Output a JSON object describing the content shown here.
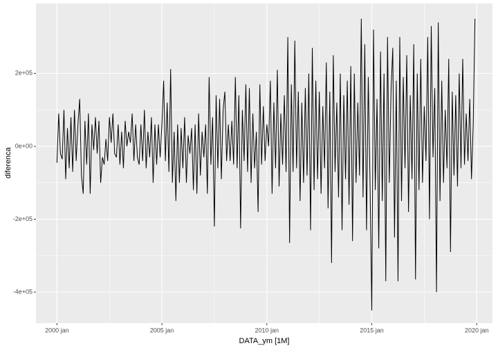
{
  "chart_data": {
    "type": "line",
    "x_label": "DATA_ym [1M]",
    "y_label": "diferenca",
    "xlim": [
      "1999-01",
      "2020-10"
    ],
    "xticks": [
      {
        "value": "2000-01",
        "label": "2000 jan"
      },
      {
        "value": "2005-01",
        "label": "2005 jan"
      },
      {
        "value": "2010-01",
        "label": "2010 jan"
      },
      {
        "value": "2015-01",
        "label": "2015 jan"
      },
      {
        "value": "2020-01",
        "label": "2020 jan"
      }
    ],
    "ylim": [
      -485000,
      392000
    ],
    "yticks": [
      {
        "value": -400000,
        "label": "-4e+05"
      },
      {
        "value": -200000,
        "label": "-2e+05"
      },
      {
        "value": 0,
        "label": "0e+00"
      },
      {
        "value": 200000,
        "label": "2e+05"
      }
    ],
    "grid": true,
    "color": "#000000",
    "x": [
      "2000-01",
      "2000-02",
      "2000-03",
      "2000-04",
      "2000-05",
      "2000-06",
      "2000-07",
      "2000-08",
      "2000-09",
      "2000-10",
      "2000-11",
      "2000-12",
      "2001-01",
      "2001-02",
      "2001-03",
      "2001-04",
      "2001-05",
      "2001-06",
      "2001-07",
      "2001-08",
      "2001-09",
      "2001-10",
      "2001-11",
      "2001-12",
      "2002-01",
      "2002-02",
      "2002-03",
      "2002-04",
      "2002-05",
      "2002-06",
      "2002-07",
      "2002-08",
      "2002-09",
      "2002-10",
      "2002-11",
      "2002-12",
      "2003-01",
      "2003-02",
      "2003-03",
      "2003-04",
      "2003-05",
      "2003-06",
      "2003-07",
      "2003-08",
      "2003-09",
      "2003-10",
      "2003-11",
      "2003-12",
      "2004-01",
      "2004-02",
      "2004-03",
      "2004-04",
      "2004-05",
      "2004-06",
      "2004-07",
      "2004-08",
      "2004-09",
      "2004-10",
      "2004-11",
      "2004-12",
      "2005-01",
      "2005-02",
      "2005-03",
      "2005-04",
      "2005-05",
      "2005-06",
      "2005-07",
      "2005-08",
      "2005-09",
      "2005-10",
      "2005-11",
      "2005-12",
      "2006-01",
      "2006-02",
      "2006-03",
      "2006-04",
      "2006-05",
      "2006-06",
      "2006-07",
      "2006-08",
      "2006-09",
      "2006-10",
      "2006-11",
      "2006-12",
      "2007-01",
      "2007-02",
      "2007-03",
      "2007-04",
      "2007-05",
      "2007-06",
      "2007-07",
      "2007-08",
      "2007-09",
      "2007-10",
      "2007-11",
      "2007-12",
      "2008-01",
      "2008-02",
      "2008-03",
      "2008-04",
      "2008-05",
      "2008-06",
      "2008-07",
      "2008-08",
      "2008-09",
      "2008-10",
      "2008-11",
      "2008-12",
      "2009-01",
      "2009-02",
      "2009-03",
      "2009-04",
      "2009-05",
      "2009-06",
      "2009-07",
      "2009-08",
      "2009-09",
      "2009-10",
      "2009-11",
      "2009-12",
      "2010-01",
      "2010-02",
      "2010-03",
      "2010-04",
      "2010-05",
      "2010-06",
      "2010-07",
      "2010-08",
      "2010-09",
      "2010-10",
      "2010-11",
      "2010-12",
      "2011-01",
      "2011-02",
      "2011-03",
      "2011-04",
      "2011-05",
      "2011-06",
      "2011-07",
      "2011-08",
      "2011-09",
      "2011-10",
      "2011-11",
      "2011-12",
      "2012-01",
      "2012-02",
      "2012-03",
      "2012-04",
      "2012-05",
      "2012-06",
      "2012-07",
      "2012-08",
      "2012-09",
      "2012-10",
      "2012-11",
      "2012-12",
      "2013-01",
      "2013-02",
      "2013-03",
      "2013-04",
      "2013-05",
      "2013-06",
      "2013-07",
      "2013-08",
      "2013-09",
      "2013-10",
      "2013-11",
      "2013-12",
      "2014-01",
      "2014-02",
      "2014-03",
      "2014-04",
      "2014-05",
      "2014-06",
      "2014-07",
      "2014-08",
      "2014-09",
      "2014-10",
      "2014-11",
      "2014-12",
      "2015-01",
      "2015-02",
      "2015-03",
      "2015-04",
      "2015-05",
      "2015-06",
      "2015-07",
      "2015-08",
      "2015-09",
      "2015-10",
      "2015-11",
      "2015-12",
      "2016-01",
      "2016-02",
      "2016-03",
      "2016-04",
      "2016-05",
      "2016-06",
      "2016-07",
      "2016-08",
      "2016-09",
      "2016-10",
      "2016-11",
      "2016-12",
      "2017-01",
      "2017-02",
      "2017-03",
      "2017-04",
      "2017-05",
      "2017-06",
      "2017-07",
      "2017-08",
      "2017-09",
      "2017-10",
      "2017-11",
      "2017-12",
      "2018-01",
      "2018-02",
      "2018-03",
      "2018-04",
      "2018-05",
      "2018-06",
      "2018-07",
      "2018-08",
      "2018-09",
      "2018-10",
      "2018-11",
      "2018-12",
      "2019-01",
      "2019-02",
      "2019-03",
      "2019-04",
      "2019-05",
      "2019-06",
      "2019-07",
      "2019-08",
      "2019-09",
      "2019-10",
      "2019-11",
      "2019-12"
    ],
    "values": [
      -45000,
      90000,
      -20000,
      -35000,
      100000,
      -90000,
      50000,
      -60000,
      80000,
      -70000,
      100000,
      -40000,
      60000,
      130000,
      -80000,
      -130000,
      70000,
      -50000,
      90000,
      -130000,
      60000,
      -10000,
      80000,
      -20000,
      70000,
      -100000,
      -30000,
      -50000,
      20000,
      -40000,
      80000,
      10000,
      90000,
      -20000,
      -30000,
      60000,
      -50000,
      40000,
      -60000,
      70000,
      0,
      40000,
      10000,
      90000,
      -40000,
      60000,
      -30000,
      -50000,
      60000,
      -40000,
      100000,
      -60000,
      40000,
      -30000,
      80000,
      -100000,
      60000,
      -50000,
      60000,
      -30000,
      60000,
      180000,
      -40000,
      120000,
      -70000,
      212000,
      -100000,
      40000,
      -150000,
      60000,
      -100000,
      50000,
      -60000,
      80000,
      -100000,
      30000,
      -20000,
      50000,
      -120000,
      60000,
      -130000,
      90000,
      -80000,
      40000,
      -30000,
      60000,
      -130000,
      190000,
      -50000,
      80000,
      -220000,
      140000,
      -60000,
      130000,
      -90000,
      100000,
      150000,
      -40000,
      60000,
      -40000,
      70000,
      -50000,
      190000,
      -60000,
      140000,
      -225000,
      100000,
      -40000,
      170000,
      -70000,
      160000,
      -100000,
      90000,
      -60000,
      40000,
      -180000,
      170000,
      -50000,
      110000,
      -40000,
      60000,
      0,
      180000,
      -130000,
      120000,
      -60000,
      210000,
      -110000,
      90000,
      -50000,
      140000,
      -70000,
      300000,
      -265000,
      170000,
      -70000,
      290000,
      -60000,
      150000,
      -150000,
      120000,
      -100000,
      160000,
      -80000,
      200000,
      -230000,
      270000,
      -120000,
      180000,
      -90000,
      150000,
      -130000,
      110000,
      -60000,
      230000,
      -170000,
      150000,
      -320000,
      250000,
      -70000,
      120000,
      -140000,
      200000,
      -230000,
      140000,
      -90000,
      180000,
      -160000,
      220000,
      -260000,
      200000,
      -100000,
      120000,
      -80000,
      350000,
      -140000,
      280000,
      -230000,
      190000,
      -100000,
      -450000,
      320000,
      -120000,
      130000,
      -280000,
      260000,
      -150000,
      200000,
      -370000,
      300000,
      -100000,
      150000,
      270000,
      -250000,
      180000,
      -370000,
      300000,
      -150000,
      190000,
      -60000,
      250000,
      -180000,
      140000,
      -90000,
      280000,
      -365000,
      200000,
      -120000,
      240000,
      -100000,
      110000,
      -40000,
      300000,
      -200000,
      330000,
      -30000,
      160000,
      -400000,
      340000,
      -150000,
      180000,
      -100000,
      100000,
      -60000,
      240000,
      -290000,
      150000,
      -80000,
      140000,
      -110000,
      200000,
      -60000,
      240000,
      -50000,
      90000,
      -40000,
      130000,
      -90000,
      60000,
      350000
    ]
  }
}
